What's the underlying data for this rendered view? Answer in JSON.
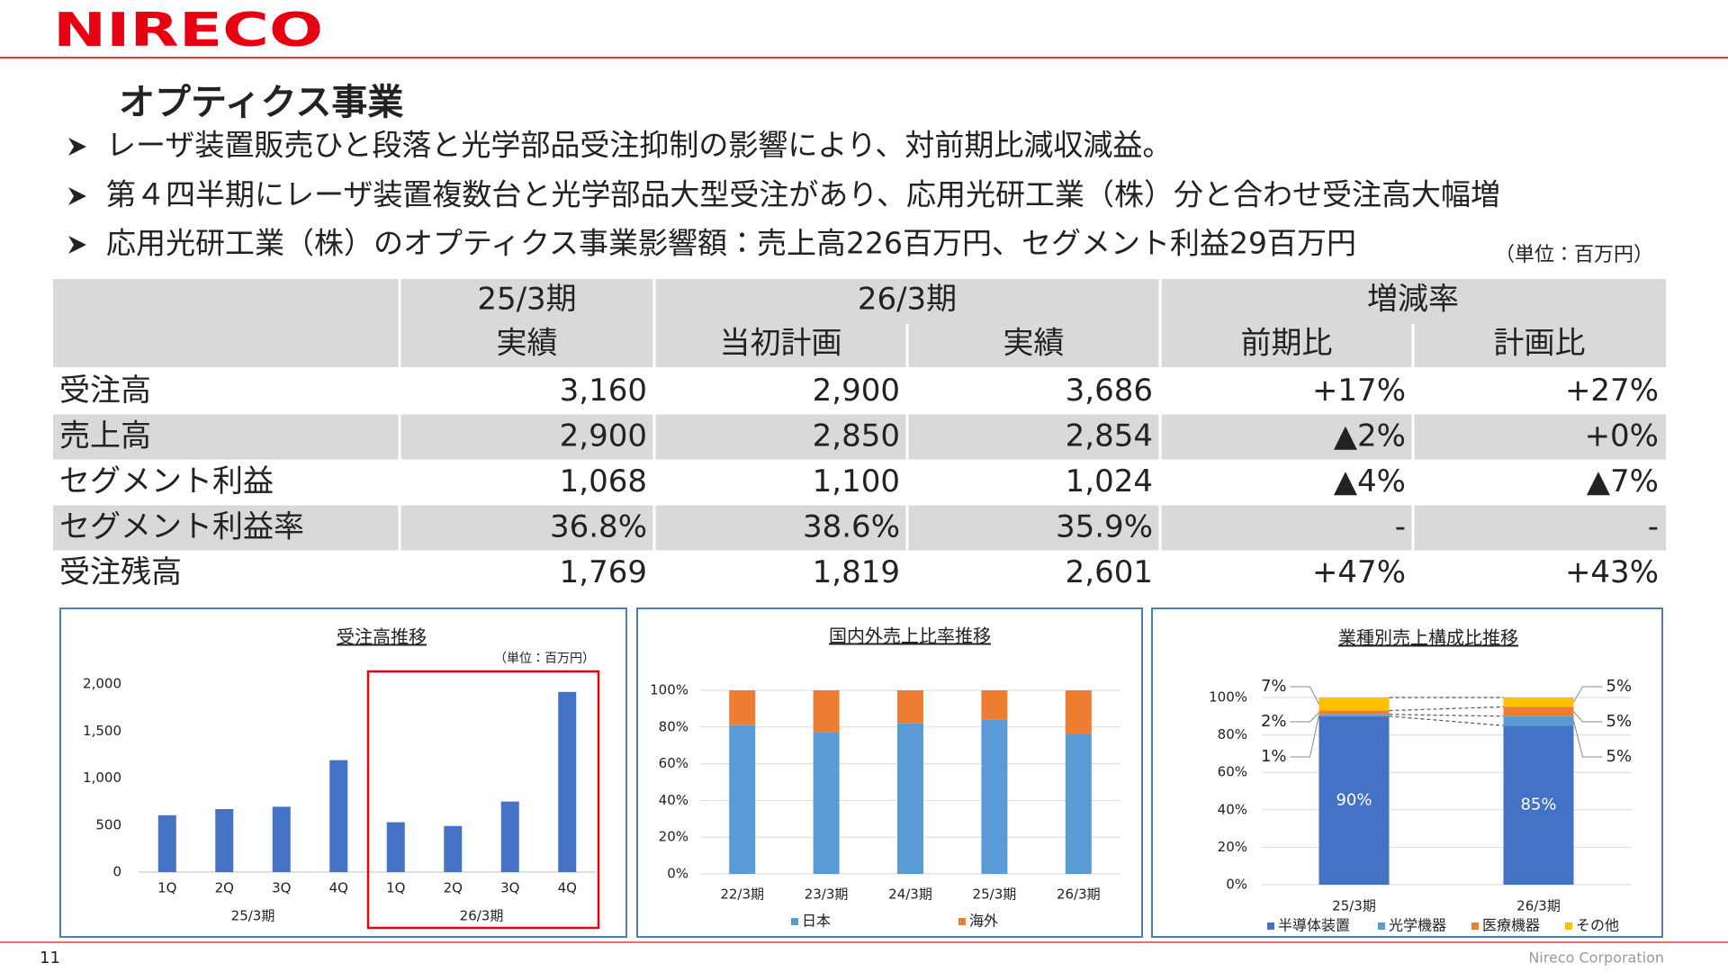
{
  "header": {
    "logo": "NIRECO",
    "title": "オプティクス事業"
  },
  "bullets": [
    "レーザ装置販売ひと段落と光学部品受注抑制の影響により、対前期比減収減益。",
    "第４四半期にレーザ装置複数台と光学部品大型受注があり、応用光研工業（株）分と合わせ受注高大幅増",
    "応用光研工業（株）のオプティクス事業影響額：売上高226百万円、セグメント利益29百万円"
  ],
  "table": {
    "unit": "（単位：百万円）",
    "groups": [
      "25/3期",
      "26/3期",
      "増減率"
    ],
    "columns": [
      "実績",
      "当初計画",
      "実績",
      "前期比",
      "計画比"
    ],
    "rows": [
      [
        "受注高",
        "3,160",
        "2,900",
        "3,686",
        "+17%",
        "+27%"
      ],
      [
        "売上高",
        "2,900",
        "2,850",
        "2,854",
        "▲2%",
        "+0%"
      ],
      [
        "セグメント利益",
        "1,068",
        "1,100",
        "1,024",
        "▲4%",
        "▲7%"
      ],
      [
        "セグメント利益率",
        "36.8%",
        "38.6%",
        "35.9%",
        "-",
        "-"
      ],
      [
        "受注残高",
        "1,769",
        "1,819",
        "2,601",
        "+47%",
        "+43%"
      ]
    ]
  },
  "chart_data": [
    {
      "type": "bar",
      "title": "受注高推移",
      "unit": "（単位：百万円）",
      "categories": [
        "1Q",
        "2Q",
        "3Q",
        "4Q",
        "1Q",
        "2Q",
        "3Q",
        "4Q"
      ],
      "group_labels": [
        "25/3期",
        "26/3期"
      ],
      "values": [
        605,
        670,
        695,
        1190,
        530,
        490,
        750,
        1916
      ],
      "color": "#4472c4",
      "ylim": [
        0,
        2000
      ],
      "yticks": [
        0,
        500,
        {
          "value": 1000,
          "label": "1,000"
        },
        {
          "value": 1500,
          "label": "1,500"
        },
        {
          "value": 2000,
          "label": "2,000"
        }
      ],
      "grid": false
    },
    {
      "type": "bar",
      "stacked": true,
      "title": "国内外売上比率推移",
      "categories": [
        "22/3期",
        "23/3期",
        "24/3期",
        "25/3期",
        "26/3期"
      ],
      "series": [
        {
          "name": "日本",
          "color": "#5b9bd5",
          "values": [
            81,
            77,
            82,
            84,
            76
          ]
        },
        {
          "name": "海外",
          "color": "#ed7d31",
          "values": [
            19,
            23,
            18,
            16,
            24
          ]
        }
      ],
      "ylim": [
        0,
        100
      ],
      "yticks": [
        {
          "value": 0,
          "label": "0%"
        },
        {
          "value": 20,
          "label": "20%"
        },
        {
          "value": 40,
          "label": "40%"
        },
        {
          "value": 60,
          "label": "60%"
        },
        {
          "value": 80,
          "label": "80%"
        },
        {
          "value": 100,
          "label": "100%"
        }
      ],
      "grid": true
    },
    {
      "type": "bar",
      "stacked": true,
      "series_lines": true,
      "title": "業種別売上構成比推移",
      "categories": [
        "25/3期",
        "26/3期"
      ],
      "series": [
        {
          "name": "半導体装置",
          "color": "#4472c4",
          "values": [
            90,
            85
          ],
          "value_labels": [
            "90%",
            "85%"
          ]
        },
        {
          "name": "光学機器",
          "color": "#5b9bd5",
          "values": [
            1,
            5
          ],
          "value_labels": [
            "1%",
            "5%"
          ]
        },
        {
          "name": "医療機器",
          "color": "#ed7d31",
          "values": [
            2,
            5
          ],
          "value_labels": [
            "2%",
            "5%"
          ]
        },
        {
          "name": "その他",
          "color": "#ffc000",
          "values": [
            7,
            5
          ],
          "value_labels": [
            "7%",
            "5%"
          ]
        }
      ],
      "ylim": [
        0,
        100
      ],
      "yticks": [
        {
          "value": 0,
          "label": "0%"
        },
        {
          "value": 20,
          "label": "20%"
        },
        {
          "value": 40,
          "label": "40%"
        },
        {
          "value": 60,
          "label": "60%"
        },
        {
          "value": 80,
          "label": "80%"
        },
        {
          "value": 100,
          "label": "100%"
        }
      ],
      "grid": true
    }
  ],
  "footer": {
    "page": "11",
    "company": "Nireco Corporation"
  }
}
